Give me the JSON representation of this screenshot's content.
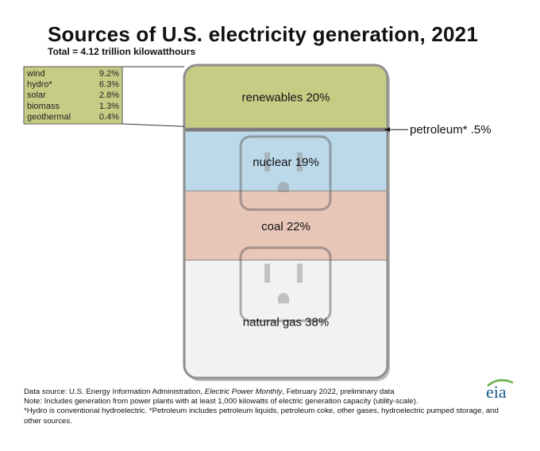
{
  "chart_data": {
    "type": "stacked-bar",
    "title": "Sources of U.S. electricity generation, 2021",
    "subtitle": "Total = 4.12 trillion kilowatthours",
    "unit": "%",
    "segments": [
      {
        "name": "renewables",
        "label": "renewables 20%",
        "value": 20,
        "color": "#c7cc85"
      },
      {
        "name": "petroleum*",
        "label": "petroleum* .5%",
        "value": 0.5,
        "color": "#7a7a7a"
      },
      {
        "name": "nuclear",
        "label": "nuclear 19%",
        "value": 19,
        "color": "#bcd9ea"
      },
      {
        "name": "coal",
        "label": "coal 22%",
        "value": 22,
        "color": "#e8c6b8"
      },
      {
        "name": "natural gas",
        "label": "natural gas 38%",
        "value": 38,
        "color": "#f2f2f2"
      }
    ],
    "renewables_breakdown": [
      {
        "name": "wind",
        "value_label": "9.2%",
        "value": 9.2
      },
      {
        "name": "hydro*",
        "value_label": "6.3%",
        "value": 6.3
      },
      {
        "name": "solar",
        "value_label": "2.8%",
        "value": 2.8
      },
      {
        "name": "biomass",
        "value_label": "1.3%",
        "value": 1.3
      },
      {
        "name": "geothermal",
        "value_label": "0.4%",
        "value": 0.4
      }
    ]
  },
  "footer": {
    "source_prefix": "Data source: U.S. Energy Information Administration, ",
    "source_italic": "Electric Power Monthly",
    "source_suffix": ", February 2022, preliminary data",
    "note1": "Note: Includes generation from power plants with at least 1,000 kilowatts of electric generation capacity (utility-scale).",
    "note2": "*Hydro is conventional hydroelectric. *Petroleum includes petroleum liquids, petroleum coke, other gases, hydroelectric pumped storage, and other sources."
  },
  "logo": {
    "text": "eia",
    "color": "#1a5c8c",
    "arc_color": "#6bb14a"
  }
}
